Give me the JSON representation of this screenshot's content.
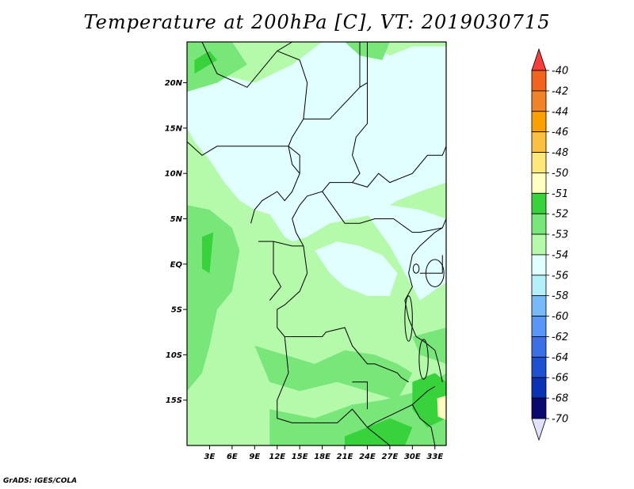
{
  "title": "Temperature at 200hPa [C], VT: 2019030715",
  "credit": "GrADS: IGES/COLA",
  "map": {
    "lat_labels": [
      "20N",
      "15N",
      "10N",
      "5N",
      "EQ",
      "5S",
      "10S",
      "15S"
    ],
    "lon_labels": [
      "3E",
      "6E",
      "9E",
      "12E",
      "15E",
      "18E",
      "21E",
      "24E",
      "27E",
      "30E",
      "33E"
    ],
    "lat_range": [
      -20,
      24.5
    ],
    "lon_range": [
      0,
      34.5
    ]
  },
  "colorbar": {
    "levels": [
      "-40",
      "-42",
      "-44",
      "-46",
      "-48",
      "-50",
      "-51",
      "-52",
      "-53",
      "-54",
      "-56",
      "-58",
      "-60",
      "-62",
      "-64",
      "-66",
      "-68",
      "-70"
    ],
    "colors": [
      "#fa3c3c",
      "#f0641e",
      "#f08228",
      "#faa000",
      "#fac040",
      "#ffe87a",
      "#ffffc0",
      "#37d23c",
      "#78e678",
      "#b4faaa",
      "#e1ffff",
      "#b4f0fa",
      "#78b9fa",
      "#5a96f5",
      "#3c6ee6",
      "#1e50d2",
      "#0a32b4",
      "#0a0a6e",
      "#e1e1fa"
    ]
  },
  "field": {
    "background": "#b4faaa",
    "regions": [
      {
        "level": "-54",
        "color": "#e1ffff",
        "note": "Sahel / central band"
      },
      {
        "level": "-53",
        "color": "#78e678",
        "note": "coastal and southern areas"
      },
      {
        "level": "-52",
        "color": "#37d23c",
        "note": "small patches"
      },
      {
        "level": "-51",
        "color": "#ffffc0",
        "note": "spot near 34E 16S"
      }
    ]
  }
}
